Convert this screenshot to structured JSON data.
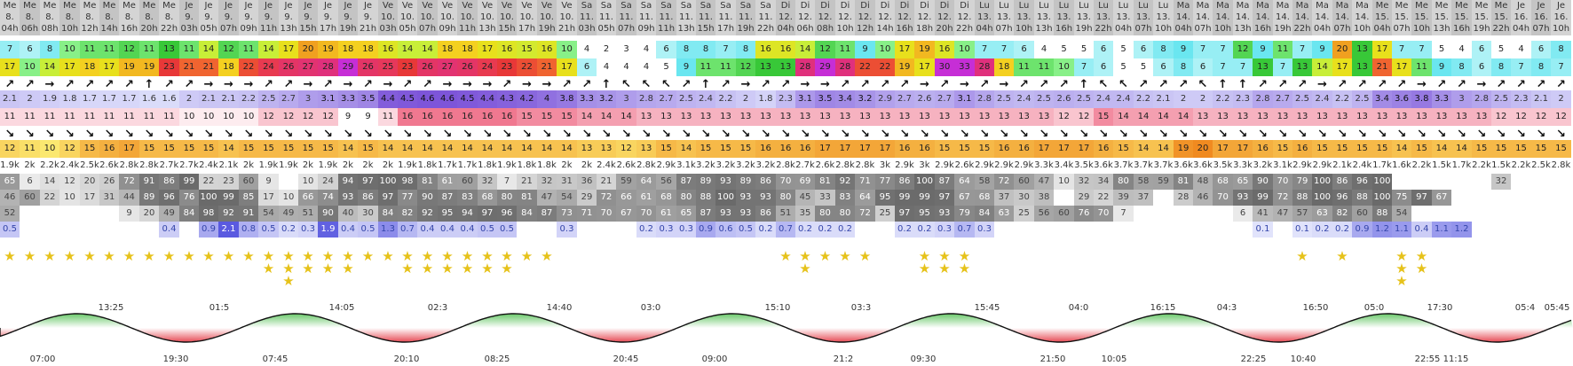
{
  "header": {
    "days": [
      "Me",
      "Me",
      "Me",
      "Me",
      "Me",
      "Me",
      "Me",
      "Me",
      "Me",
      "Je",
      "Je",
      "Je",
      "Je",
      "Je",
      "Je",
      "Je",
      "Je",
      "Je",
      "Je",
      "Ve",
      "Ve",
      "Ve",
      "Ve",
      "Ve",
      "Ve",
      "Ve",
      "Ve",
      "Ve",
      "Ve",
      "Sa",
      "Sa",
      "Sa",
      "Sa",
      "Sa",
      "Sa",
      "Sa",
      "Sa",
      "Sa",
      "Sa",
      "Di",
      "Di",
      "Di",
      "Di",
      "Di",
      "Di",
      "Di",
      "Di",
      "Di",
      "Di",
      "Lu",
      "Lu",
      "Lu",
      "Lu",
      "Lu",
      "Lu",
      "Lu",
      "Lu",
      "Lu",
      "Lu",
      "Ma",
      "Ma",
      "Ma",
      "Ma",
      "Ma",
      "Ma",
      "Ma",
      "Ma",
      "Ma",
      "Ma",
      "Me",
      "Me",
      "Me",
      "Me",
      "Me",
      "Me",
      "Me",
      "Je",
      "Je",
      "Je"
    ],
    "dates": [
      "8.",
      "8.",
      "8.",
      "8.",
      "8.",
      "8.",
      "8.",
      "8.",
      "8.",
      "9.",
      "9.",
      "9.",
      "9.",
      "9.",
      "9.",
      "9.",
      "9.",
      "9.",
      "9.",
      "10.",
      "10.",
      "10.",
      "10.",
      "10.",
      "10.",
      "10.",
      "10.",
      "10.",
      "10.",
      "11.",
      "11.",
      "11.",
      "11.",
      "11.",
      "11.",
      "11.",
      "11.",
      "11.",
      "11.",
      "12.",
      "12.",
      "12.",
      "12.",
      "12.",
      "12.",
      "12.",
      "12.",
      "12.",
      "12.",
      "13.",
      "13.",
      "13.",
      "13.",
      "13.",
      "13.",
      "13.",
      "13.",
      "13.",
      "13.",
      "14.",
      "14.",
      "14.",
      "14.",
      "14.",
      "14.",
      "14.",
      "14.",
      "14.",
      "14.",
      "15.",
      "15.",
      "15.",
      "15.",
      "15.",
      "15.",
      "15.",
      "16.",
      "16.",
      "16."
    ],
    "hours": [
      "04h",
      "06h",
      "08h",
      "10h",
      "12h",
      "14h",
      "16h",
      "20h",
      "22h",
      "03h",
      "05h",
      "07h",
      "09h",
      "11h",
      "13h",
      "15h",
      "17h",
      "19h",
      "21h",
      "03h",
      "05h",
      "07h",
      "09h",
      "11h",
      "13h",
      "15h",
      "17h",
      "19h",
      "21h",
      "03h",
      "05h",
      "07h",
      "09h",
      "11h",
      "13h",
      "15h",
      "17h",
      "19h",
      "22h",
      "04h",
      "06h",
      "08h",
      "10h",
      "12h",
      "14h",
      "16h",
      "18h",
      "20h",
      "22h",
      "04h",
      "07h",
      "10h",
      "13h",
      "16h",
      "19h",
      "22h",
      "04h",
      "07h",
      "10h",
      "04h",
      "07h",
      "10h",
      "13h",
      "16h",
      "19h",
      "22h",
      "04h",
      "07h",
      "10h",
      "04h",
      "07h",
      "10h",
      "13h",
      "16h",
      "19h",
      "22h",
      "04h",
      "07h",
      "10h"
    ]
  },
  "rows": {
    "wind_speed": [
      "7",
      "6",
      "8",
      "10",
      "11",
      "11",
      "12",
      "11",
      "13",
      "11",
      "14",
      "12",
      "11",
      "14",
      "17",
      "20",
      "19",
      "18",
      "18",
      "16",
      "14",
      "14",
      "18",
      "18",
      "17",
      "16",
      "15",
      "16",
      "10",
      "4",
      "2",
      "3",
      "4",
      "6",
      "8",
      "8",
      "7",
      "8",
      "16",
      "16",
      "14",
      "12",
      "11",
      "9",
      "10",
      "17",
      "19",
      "16",
      "10",
      "7",
      "7",
      "6",
      "4",
      "5",
      "5",
      "6",
      "5",
      "6",
      "8",
      "9",
      "7",
      "7",
      "12",
      "9",
      "11",
      "7",
      "9",
      "20",
      "13",
      "17",
      "7",
      "7",
      "5",
      "4",
      "6",
      "5",
      "4",
      "6",
      "8"
    ],
    "wind_gust": [
      "17",
      "10",
      "14",
      "17",
      "18",
      "17",
      "19",
      "19",
      "23",
      "21",
      "21",
      "18",
      "22",
      "24",
      "26",
      "27",
      "28",
      "29",
      "26",
      "25",
      "23",
      "26",
      "27",
      "26",
      "24",
      "23",
      "22",
      "21",
      "17",
      "6",
      "4",
      "4",
      "4",
      "5",
      "9",
      "11",
      "11",
      "12",
      "13",
      "13",
      "28",
      "29",
      "28",
      "22",
      "22",
      "19",
      "17",
      "30",
      "33",
      "28",
      "18",
      "11",
      "11",
      "10",
      "7",
      "6",
      "5",
      "5",
      "6",
      "8",
      "6",
      "7",
      "7",
      "13",
      "7",
      "13",
      "14",
      "17",
      "13",
      "21",
      "17",
      "11",
      "9",
      "8",
      "6",
      "8",
      "7",
      "8",
      "7"
    ],
    "wind_dir": [
      "↗",
      "↗",
      "→",
      "↗",
      "↗",
      "↗",
      "↗",
      "↑",
      "↗",
      "↗",
      "→",
      "→",
      "→",
      "↗",
      "↗",
      "→",
      "↗",
      "→",
      "↗",
      "→",
      "↗",
      "↗",
      "→",
      "→",
      "→",
      "↗",
      "→",
      "→",
      "↗",
      "↗",
      "↑",
      "↖",
      "↖",
      "↖",
      "↗",
      "↑",
      "↗",
      "→",
      "↗",
      "↗",
      "→",
      "→",
      "↗",
      "↗",
      "↗",
      "↗",
      "→",
      "↗",
      "→",
      "↗",
      "→",
      "↗",
      "↗",
      "↗",
      "↑",
      "↖",
      "↖",
      "↗",
      "↗",
      "↗",
      "↖",
      "↑",
      "↑",
      "↗",
      "↗",
      "↗",
      "→",
      "↗",
      "↗",
      "↗",
      "↗",
      "→",
      "↗",
      "↗",
      "→",
      "↗",
      "↗",
      "↗",
      "↗"
    ],
    "wave_height": [
      "2.1",
      "2",
      "1.9",
      "1.8",
      "1.7",
      "1.7",
      "1.7",
      "1.6",
      "1.6",
      "2",
      "2.1",
      "2.1",
      "2.2",
      "2.5",
      "2.7",
      "3",
      "3.1",
      "3.3",
      "3.5",
      "4.4",
      "4.5",
      "4.6",
      "4.6",
      "4.5",
      "4.4",
      "4.3",
      "4.2",
      "4",
      "3.8",
      "3.3",
      "3.2",
      "3",
      "2.8",
      "2.7",
      "2.5",
      "2.4",
      "2.2",
      "2",
      "1.8",
      "2.3",
      "3.1",
      "3.5",
      "3.4",
      "3.2",
      "2.9",
      "2.7",
      "2.6",
      "2.7",
      "3.1",
      "2.8",
      "2.5",
      "2.4",
      "2.5",
      "2.6",
      "2.5",
      "2.4",
      "2.4",
      "2.2",
      "2.1",
      "2",
      "2",
      "2.2",
      "2.3",
      "2.8",
      "2.7",
      "2.5",
      "2.4",
      "2.2",
      "2.5",
      "3.4",
      "3.6",
      "3.8",
      "3.3",
      "3",
      "2.8",
      "2.5",
      "2.3",
      "2.1",
      "2"
    ],
    "wave_period": [
      "11",
      "11",
      "11",
      "11",
      "11",
      "11",
      "11",
      "11",
      "11",
      "10",
      "10",
      "10",
      "10",
      "12",
      "12",
      "12",
      "12",
      "9",
      "9",
      "11",
      "16",
      "16",
      "16",
      "16",
      "16",
      "16",
      "15",
      "15",
      "15",
      "14",
      "14",
      "14",
      "13",
      "13",
      "13",
      "13",
      "13",
      "13",
      "13",
      "13",
      "13",
      "13",
      "13",
      "13",
      "13",
      "13",
      "13",
      "13",
      "13",
      "13",
      "13",
      "13",
      "13",
      "12",
      "12",
      "15",
      "14",
      "14",
      "14",
      "14",
      "13",
      "13",
      "13",
      "13",
      "13",
      "13",
      "13",
      "13",
      "13",
      "13",
      "13",
      "13",
      "13",
      "13",
      "13",
      "12",
      "12",
      "12",
      "12"
    ],
    "wave_dir": [
      "↘",
      "↘",
      "↘",
      "↘",
      "↘",
      "↘",
      "↘",
      "↘",
      "↘",
      "↘",
      "↘",
      "↘",
      "↘",
      "↘",
      "↘",
      "↘",
      "↘",
      "↘",
      "↘",
      "↘",
      "↘",
      "↘",
      "↘",
      "↘",
      "↘",
      "↘",
      "↘",
      "↘",
      "↘",
      "↘",
      "↘",
      "↘",
      "↘",
      "↘",
      "↘",
      "↘",
      "↘",
      "↘",
      "↘",
      "↘",
      "↘",
      "↘",
      "↘",
      "↘",
      "↘",
      "↘",
      "↘",
      "↘",
      "↘",
      "↘",
      "↘",
      "↘",
      "↘",
      "↘",
      "↘",
      "↘",
      "↘",
      "↘",
      "↘",
      "↘",
      "↘",
      "↘",
      "↘",
      "↘",
      "↘",
      "↘",
      "↘",
      "↘",
      "↘",
      "↘",
      "↘",
      "↘",
      "↘",
      "↘",
      "↘",
      "↘",
      "↘",
      "↘",
      "↘"
    ],
    "temperature": [
      "12",
      "11",
      "10",
      "12",
      "15",
      "16",
      "17",
      "15",
      "15",
      "15",
      "15",
      "14",
      "15",
      "15",
      "15",
      "15",
      "15",
      "14",
      "15",
      "14",
      "14",
      "14",
      "14",
      "14",
      "14",
      "14",
      "14",
      "14",
      "14",
      "13",
      "13",
      "12",
      "13",
      "15",
      "14",
      "15",
      "15",
      "15",
      "16",
      "16",
      "16",
      "17",
      "17",
      "17",
      "17",
      "16",
      "16",
      "15",
      "15",
      "15",
      "16",
      "16",
      "17",
      "17",
      "17",
      "16",
      "15",
      "14",
      "14",
      "19",
      "20",
      "17",
      "17",
      "16",
      "15",
      "16",
      "15",
      "15",
      "15",
      "15",
      "14",
      "15",
      "14",
      "14",
      "15",
      "15",
      "15",
      "15",
      "15"
    ],
    "pressure": [
      "1.9k",
      "2k",
      "2.2k",
      "2.4k",
      "2.5k",
      "2.6k",
      "2.8k",
      "2.8k",
      "2.7k",
      "2.7k",
      "2.4k",
      "2.1k",
      "2k",
      "1.9k",
      "1.9k",
      "2k",
      "1.9k",
      "2k",
      "2k",
      "2k",
      "1.9k",
      "1.8k",
      "1.7k",
      "1.7k",
      "1.8k",
      "1.9k",
      "1.8k",
      "1.8k",
      "2k",
      "2k",
      "2.4k",
      "2.6k",
      "2.8k",
      "2.9k",
      "3.1k",
      "3.2k",
      "3.2k",
      "3.2k",
      "3.2k",
      "2.8k",
      "2.7k",
      "2.6k",
      "2.8k",
      "2.8k",
      "3k",
      "2.9k",
      "3k",
      "2.9k",
      "2.6k",
      "2.9k",
      "2.9k",
      "2.9k",
      "3.3k",
      "3.4k",
      "3.5k",
      "3.6k",
      "3.7k",
      "3.7k",
      "3.7k",
      "3.6k",
      "3.6k",
      "3.5k",
      "3.3k",
      "3.2k",
      "3.1k",
      "2.9k",
      "2.9k",
      "2.1k",
      "2.4k",
      "1.7k",
      "1.6k",
      "2.2k",
      "1.5k",
      "1.7k",
      "2.2k",
      "1.5k",
      "2.2k",
      "2.5k",
      "2.8k"
    ],
    "cloud_total": [
      "65",
      "6",
      "14",
      "12",
      "20",
      "26",
      "72",
      "91",
      "86",
      "99",
      "22",
      "23",
      "60",
      "9",
      "",
      "10",
      "24",
      "94",
      "97",
      "100",
      "98",
      "81",
      "61",
      "60",
      "32",
      "7",
      "21",
      "32",
      "31",
      "36",
      "21",
      "59",
      "64",
      "56",
      "87",
      "89",
      "93",
      "89",
      "86",
      "70",
      "69",
      "81",
      "92",
      "71",
      "77",
      "86",
      "100",
      "87",
      "64",
      "58",
      "72",
      "60",
      "47",
      "10",
      "32",
      "34",
      "80",
      "58",
      "59",
      "81",
      "48",
      "68",
      "65",
      "90",
      "70",
      "79",
      "100",
      "86",
      "96",
      "100",
      "",
      "",
      "",
      "",
      "",
      "32",
      "",
      "",
      ""
    ],
    "cloud_low": [
      "46",
      "60",
      "22",
      "10",
      "17",
      "31",
      "44",
      "89",
      "96",
      "76",
      "100",
      "99",
      "85",
      "17",
      "10",
      "66",
      "74",
      "93",
      "86",
      "97",
      "77",
      "90",
      "87",
      "83",
      "68",
      "80",
      "81",
      "47",
      "54",
      "29",
      "72",
      "66",
      "61",
      "68",
      "80",
      "88",
      "100",
      "93",
      "93",
      "80",
      "45",
      "33",
      "83",
      "64",
      "95",
      "99",
      "99",
      "97",
      "67",
      "68",
      "37",
      "30",
      "38",
      "",
      "29",
      "22",
      "39",
      "37",
      "",
      "28",
      "46",
      "70",
      "93",
      "99",
      "72",
      "88",
      "100",
      "96",
      "88",
      "100",
      "75",
      "97",
      "67",
      "",
      "",
      "",
      "",
      "",
      ""
    ],
    "cloud_mid": [
      "52",
      "",
      "",
      "",
      "",
      "",
      "9",
      "20",
      "49",
      "84",
      "98",
      "92",
      "91",
      "54",
      "49",
      "51",
      "90",
      "40",
      "30",
      "84",
      "82",
      "92",
      "95",
      "94",
      "97",
      "96",
      "84",
      "87",
      "73",
      "71",
      "70",
      "67",
      "70",
      "61",
      "65",
      "87",
      "93",
      "93",
      "86",
      "51",
      "35",
      "80",
      "80",
      "72",
      "25",
      "97",
      "95",
      "93",
      "79",
      "84",
      "63",
      "25",
      "56",
      "60",
      "76",
      "70",
      "7",
      "",
      "",
      "",
      "",
      "",
      "6",
      "41",
      "47",
      "57",
      "63",
      "82",
      "60",
      "88",
      "54",
      "",
      "",
      "",
      "",
      "",
      "",
      ""
    ],
    "precip": [
      "0.5",
      "",
      "",
      "",
      "",
      "",
      "",
      "",
      "0.4",
      "",
      "0.9",
      "2.1",
      "0.8",
      "0.5",
      "0.2",
      "0.3",
      "1.9",
      "0.4",
      "0.5",
      "1.3",
      "0.7",
      "0.4",
      "0.4",
      "0.4",
      "0.5",
      "0.5",
      "",
      "",
      "0.3",
      "",
      "",
      "",
      "0.2",
      "0.3",
      "0.3",
      "0.9",
      "0.6",
      "0.5",
      "0.2",
      "0.7",
      "0.2",
      "0.2",
      "0.2",
      "",
      "",
      "0.2",
      "0.2",
      "0.3",
      "0.7",
      "0.3",
      "",
      "",
      "",
      "",
      "",
      "",
      "",
      "",
      "",
      "",
      "",
      "",
      "",
      "0.1",
      "",
      "0.1",
      "0.2",
      "0.2",
      "0.9",
      "1.2",
      "1.1",
      "0.4",
      "1.1",
      "1.2",
      "",
      "",
      "",
      "",
      ""
    ],
    "rating": [
      1,
      1,
      1,
      1,
      1,
      1,
      1,
      1,
      1,
      1,
      1,
      1,
      1,
      2,
      3,
      2,
      2,
      2,
      1,
      1,
      2,
      2,
      2,
      2,
      2,
      2,
      1,
      1,
      0,
      0,
      0,
      0,
      0,
      0,
      0,
      0,
      0,
      0,
      0,
      1,
      2,
      1,
      1,
      1,
      0,
      0,
      2,
      2,
      2,
      0,
      0,
      0,
      0,
      0,
      0,
      0,
      0,
      0,
      0,
      0,
      0,
      0,
      0,
      0,
      0,
      1,
      0,
      1,
      0,
      0,
      3,
      2,
      0,
      0,
      0,
      0,
      0,
      0,
      0
    ]
  },
  "tide": {
    "high_times": [
      "13:25",
      "01:5",
      "14:05",
      "02:3",
      "14:40",
      "03:0",
      "15:10",
      "03:3",
      "15:45",
      "04:0",
      "16:15",
      "04:3",
      "16:50",
      "05:0",
      "17:30",
      "05:4",
      "05:45"
    ],
    "low_times": [
      "07:00",
      "19:30",
      "07:45",
      "20:10",
      "08:25",
      "20:45",
      "09:00",
      "21:2",
      "09:30",
      "21:50",
      "10:05",
      "22:25",
      "10:40",
      "22:55",
      "11:15"
    ]
  },
  "colors": {
    "header_bg": "#d4d4d4",
    "wind_low": "#5cc8d8",
    "wind_mid": "#6ad83c",
    "wind_high": "#e8d81c",
    "wind_vhigh": "#e84848",
    "wind_extreme": "#c62ed6",
    "wave_base": "#8890e8",
    "period_base": "#f0a0a0",
    "temp_base": "#f5c22c",
    "star": "#e6c21a",
    "tide_high": "#3cb83c",
    "tide_low": "#e0202c"
  }
}
